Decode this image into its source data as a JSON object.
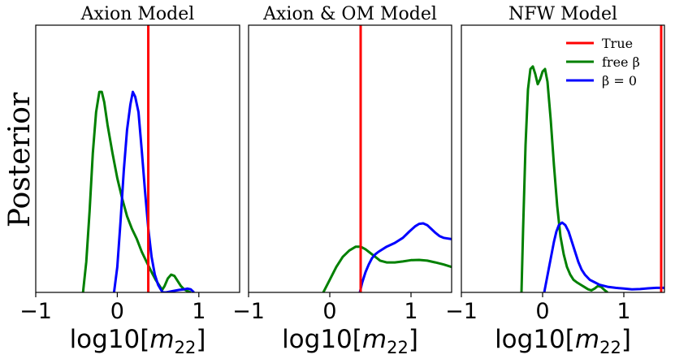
{
  "figure": {
    "ylabel": "Posterior"
  },
  "legend": {
    "placement": "top-right of third panel",
    "entries": [
      {
        "label": "True",
        "color": "#ff0000"
      },
      {
        "label": "free β",
        "color": "#008000"
      },
      {
        "label": "β = 0",
        "color": "#0000ff"
      }
    ]
  },
  "chart_data": [
    {
      "type": "line",
      "title": "Axion Model",
      "xlabel": "log10[m22]",
      "ylabel": "Posterior",
      "xlim": [
        -1,
        1.5
      ],
      "xticks": [
        -1,
        0,
        1
      ],
      "xtick_labels": [
        "−1",
        "0",
        "1"
      ],
      "ylim": [
        0,
        1
      ],
      "true_value": 0.38,
      "series": [
        {
          "name": "free β",
          "color": "#008000",
          "x": [
            -0.42,
            -0.38,
            -0.34,
            -0.3,
            -0.26,
            -0.22,
            -0.19,
            -0.16,
            -0.12,
            -0.06,
            0.0,
            0.06,
            0.12,
            0.18,
            0.24,
            0.3,
            0.36,
            0.42,
            0.47,
            0.52,
            0.55,
            0.58,
            0.62,
            0.66,
            0.7,
            0.74,
            0.78,
            0.82,
            0.86,
            0.9
          ],
          "y": [
            0.0,
            0.12,
            0.32,
            0.55,
            0.71,
            0.79,
            0.79,
            0.75,
            0.66,
            0.55,
            0.45,
            0.37,
            0.3,
            0.25,
            0.21,
            0.16,
            0.12,
            0.08,
            0.05,
            0.025,
            0.01,
            0.025,
            0.055,
            0.07,
            0.065,
            0.045,
            0.025,
            0.012,
            0.005,
            0.0
          ]
        },
        {
          "name": "β = 0",
          "color": "#0000ff",
          "x": [
            -0.04,
            0.0,
            0.04,
            0.08,
            0.12,
            0.16,
            0.19,
            0.22,
            0.26,
            0.3,
            0.34,
            0.38,
            0.42,
            0.46,
            0.5,
            0.54,
            0.56,
            0.6,
            0.68,
            0.76,
            0.82,
            0.86,
            0.9,
            0.94
          ],
          "y": [
            0.0,
            0.1,
            0.28,
            0.48,
            0.64,
            0.74,
            0.79,
            0.77,
            0.71,
            0.56,
            0.4,
            0.25,
            0.14,
            0.07,
            0.03,
            0.008,
            0.0,
            0.0,
            0.005,
            0.01,
            0.012,
            0.015,
            0.012,
            0.0
          ]
        }
      ]
    },
    {
      "type": "line",
      "title": "Axion & OM Model",
      "xlabel": "log10[m22]",
      "xlim": [
        -1,
        1.5
      ],
      "xticks": [
        -1,
        0,
        1
      ],
      "xtick_labels": [
        "−1",
        "0",
        "1"
      ],
      "ylim": [
        0,
        1
      ],
      "true_value": 0.38,
      "series": [
        {
          "name": "free β",
          "color": "#008000",
          "x": [
            -0.08,
            0.0,
            0.08,
            0.16,
            0.24,
            0.32,
            0.38,
            0.44,
            0.5,
            0.56,
            0.62,
            0.7,
            0.8,
            0.9,
            1.0,
            1.1,
            1.2,
            1.3,
            1.4,
            1.5
          ],
          "y": [
            0.0,
            0.05,
            0.1,
            0.14,
            0.165,
            0.18,
            0.18,
            0.17,
            0.155,
            0.14,
            0.125,
            0.118,
            0.118,
            0.122,
            0.127,
            0.128,
            0.125,
            0.118,
            0.11,
            0.1
          ]
        },
        {
          "name": "β = 0",
          "color": "#0000ff",
          "x": [
            0.37,
            0.4,
            0.44,
            0.48,
            0.52,
            0.56,
            0.6,
            0.7,
            0.8,
            0.9,
            0.98,
            1.05,
            1.1,
            1.15,
            1.2,
            1.25,
            1.3,
            1.35,
            1.4,
            1.5
          ],
          "y": [
            0.0,
            0.04,
            0.08,
            0.11,
            0.135,
            0.15,
            0.16,
            0.18,
            0.195,
            0.215,
            0.24,
            0.26,
            0.27,
            0.272,
            0.265,
            0.25,
            0.235,
            0.222,
            0.215,
            0.21
          ]
        }
      ]
    },
    {
      "type": "line",
      "title": "NFW Model",
      "xlabel": "log10[m22]",
      "xlim": [
        -1,
        1.5
      ],
      "xticks": [
        -1,
        0,
        1
      ],
      "xtick_labels": [
        "−1",
        "0",
        "1"
      ],
      "ylim": [
        0,
        1
      ],
      "true_value": 1.46,
      "series": [
        {
          "name": "free β",
          "color": "#008000",
          "x": [
            -0.26,
            -0.24,
            -0.21,
            -0.18,
            -0.15,
            -0.12,
            -0.09,
            -0.06,
            -0.03,
            0.0,
            0.03,
            0.06,
            0.1,
            0.14,
            0.18,
            0.22,
            0.26,
            0.3,
            0.34,
            0.38,
            0.42,
            0.47,
            0.52,
            0.56,
            0.6,
            0.64,
            0.68,
            0.72,
            0.76,
            0.8
          ],
          "y": [
            0.0,
            0.25,
            0.58,
            0.8,
            0.88,
            0.89,
            0.86,
            0.82,
            0.84,
            0.87,
            0.88,
            0.83,
            0.68,
            0.5,
            0.34,
            0.22,
            0.15,
            0.1,
            0.07,
            0.05,
            0.04,
            0.03,
            0.02,
            0.012,
            0.008,
            0.015,
            0.025,
            0.022,
            0.01,
            0.0
          ]
        },
        {
          "name": "β = 0",
          "color": "#0000ff",
          "x": [
            0.02,
            0.05,
            0.08,
            0.11,
            0.14,
            0.17,
            0.2,
            0.24,
            0.28,
            0.32,
            0.36,
            0.4,
            0.44,
            0.48,
            0.52,
            0.58,
            0.64,
            0.7,
            0.8,
            0.9,
            1.0,
            1.1,
            1.2,
            1.3,
            1.4,
            1.5
          ],
          "y": [
            0.0,
            0.05,
            0.1,
            0.15,
            0.2,
            0.24,
            0.265,
            0.275,
            0.265,
            0.24,
            0.2,
            0.16,
            0.12,
            0.09,
            0.07,
            0.05,
            0.04,
            0.03,
            0.022,
            0.018,
            0.015,
            0.012,
            0.013,
            0.016,
            0.018,
            0.018
          ]
        }
      ]
    }
  ]
}
